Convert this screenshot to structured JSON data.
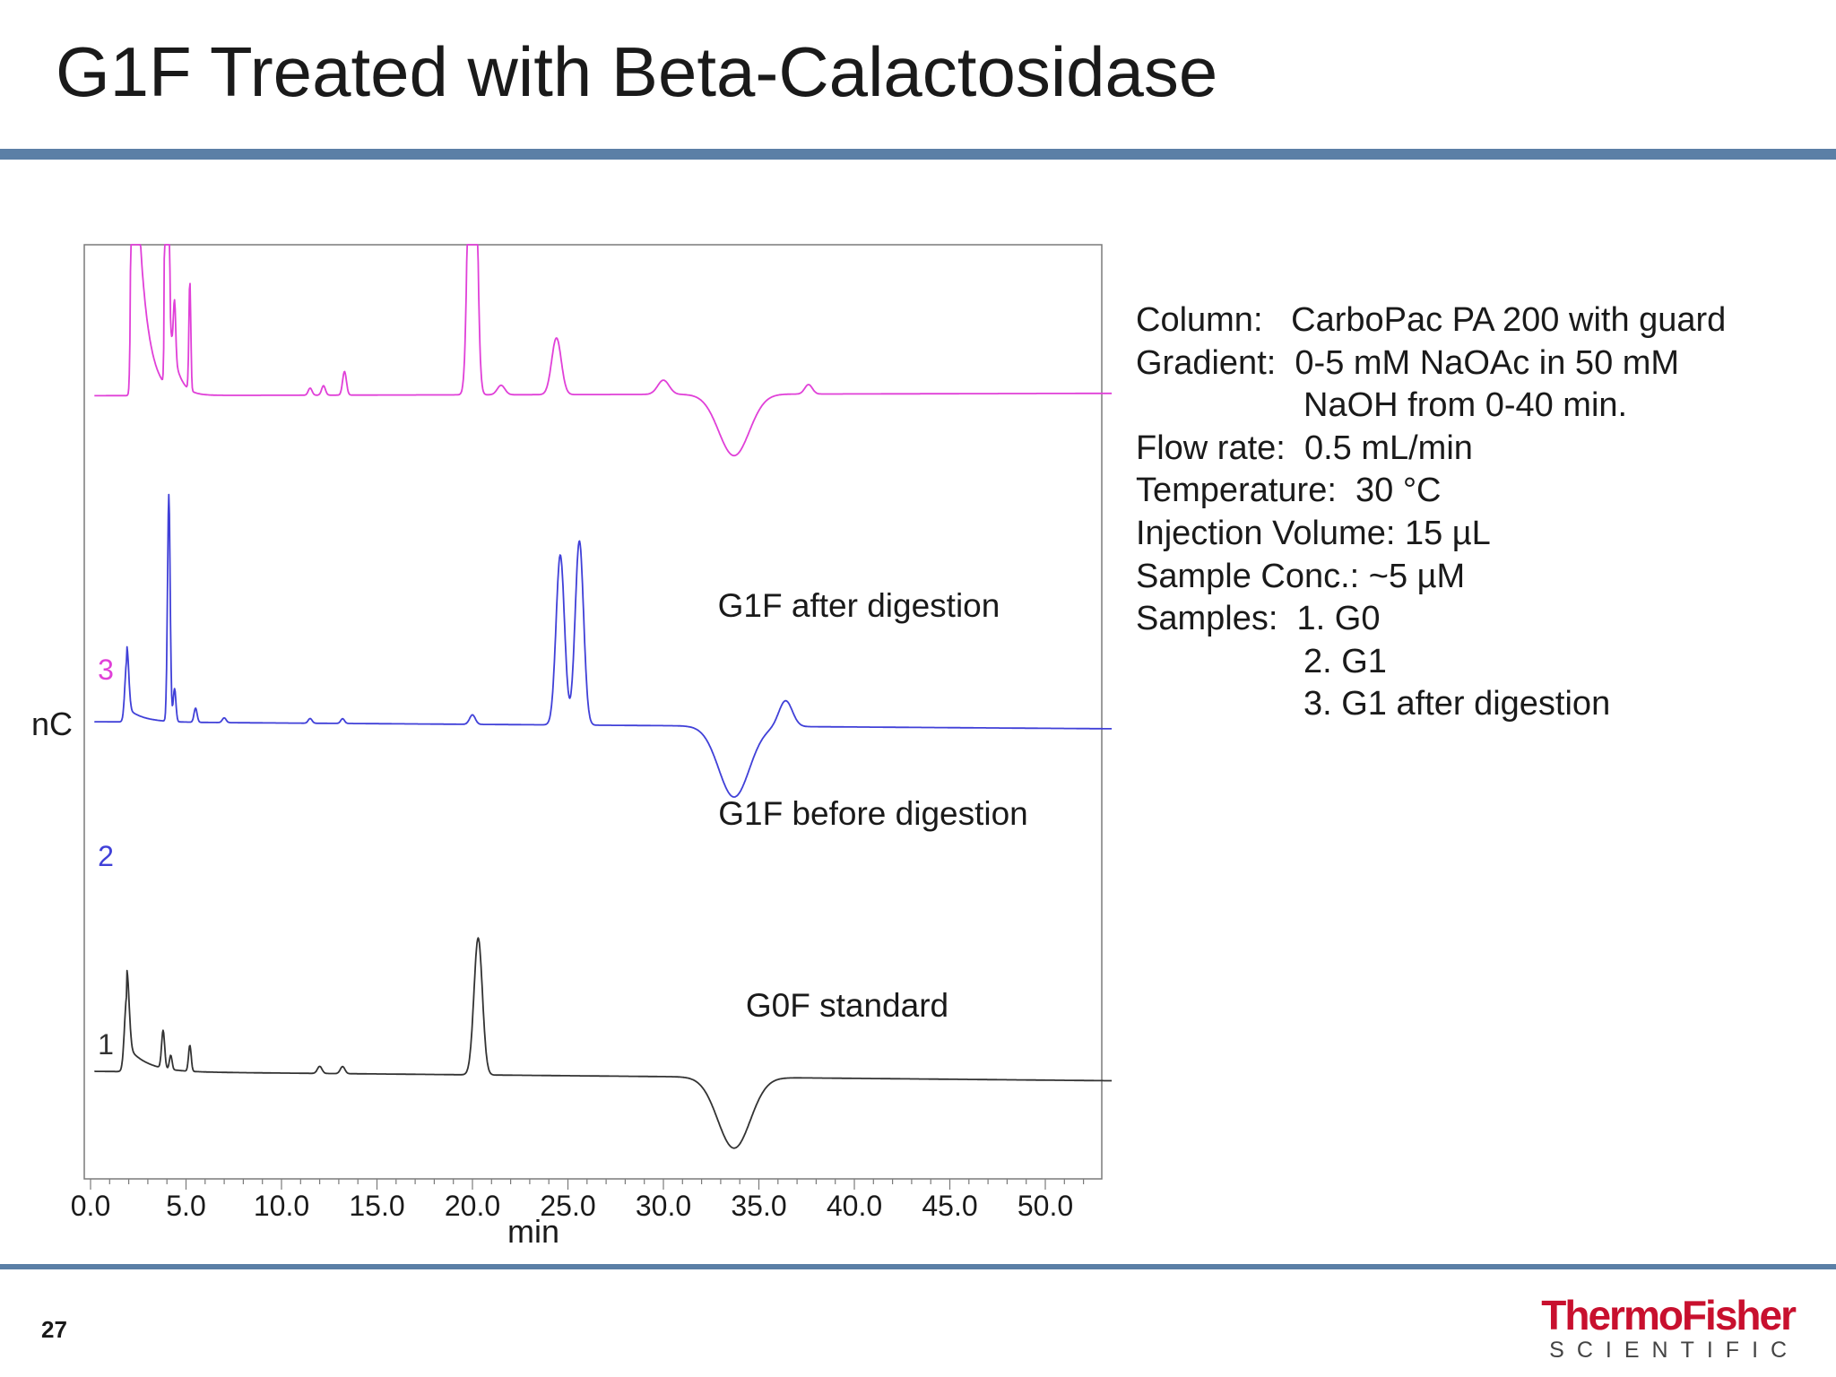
{
  "title": "G1F Treated with Beta-Calactosidase",
  "page_number": "27",
  "brand": {
    "name": "ThermoFisher",
    "sub": "SCIENTIFIC",
    "color": "#c8102e"
  },
  "accent_color": "#5b7fa6",
  "method": {
    "column": "Column:   CarboPac PA 200 with guard",
    "gradient_1": "Gradient:  0-5 mM NaOAc in 50 mM",
    "gradient_2": "NaOH from 0-40 min.",
    "flow_rate": "Flow rate:  0.5 mL/min",
    "temperature": "Temperature:  30 °C",
    "injection_volume": "Injection Volume: 15 µL",
    "sample_conc": "Sample Conc.: ~5 µM",
    "samples_1": "Samples:  1. G0",
    "samples_2": "2. G1",
    "samples_3": "3. G1 after digestion"
  },
  "chart_data": {
    "type": "line",
    "xlabel": "min",
    "ylabel": "nC",
    "xlim": [
      0,
      53.5
    ],
    "x_ticks": [
      "0.0",
      "5.0",
      "10.0",
      "15.0",
      "20.0",
      "25.0",
      "30.0",
      "35.0",
      "40.0",
      "45.0",
      "50.0"
    ],
    "grid": false,
    "series": [
      {
        "name": "1",
        "annotation": "G0F standard",
        "color": "#333333",
        "baseline": 0,
        "drift": -0.2,
        "peaks": [
          [
            1.9,
            1.6,
            0.12
          ],
          [
            3.8,
            0.8,
            0.08
          ],
          [
            4.2,
            0.3,
            0.07
          ],
          [
            5.2,
            0.55,
            0.07
          ],
          [
            12.0,
            0.15,
            0.12
          ],
          [
            13.2,
            0.15,
            0.12
          ],
          [
            20.3,
            2.9,
            0.22
          ],
          [
            33.7,
            -1.5,
            0.85
          ]
        ],
        "tails": [
          [
            1.9,
            0.55,
            1.0
          ]
        ]
      },
      {
        "name": "2",
        "annotation": "G1F before digestion",
        "color": "#4040d8",
        "baseline": 7.4,
        "drift": -0.15,
        "peaks": [
          [
            1.9,
            1.3,
            0.1
          ],
          [
            4.1,
            4.8,
            0.07
          ],
          [
            4.4,
            0.7,
            0.07
          ],
          [
            5.5,
            0.3,
            0.08
          ],
          [
            7.0,
            0.1,
            0.1
          ],
          [
            11.5,
            0.1,
            0.1
          ],
          [
            13.2,
            0.1,
            0.1
          ],
          [
            20.0,
            0.2,
            0.15
          ],
          [
            24.6,
            3.6,
            0.22
          ],
          [
            25.6,
            3.9,
            0.22
          ],
          [
            33.7,
            -1.5,
            0.8
          ],
          [
            36.4,
            0.55,
            0.35
          ]
        ],
        "tails": [
          [
            1.9,
            0.3,
            0.8
          ]
        ]
      },
      {
        "name": "3",
        "annotation": "G1F after digestion",
        "color": "#e040d8",
        "baseline": 14.3,
        "drift": 0.05,
        "peaks": [
          [
            2.3,
            40,
            0.09
          ],
          [
            4.0,
            40,
            0.06
          ],
          [
            4.4,
            1.2,
            0.06
          ],
          [
            5.2,
            2.3,
            0.05
          ],
          [
            11.5,
            0.15,
            0.1
          ],
          [
            12.2,
            0.2,
            0.1
          ],
          [
            13.3,
            0.5,
            0.1
          ],
          [
            20.0,
            11.3,
            0.18
          ],
          [
            21.5,
            0.2,
            0.2
          ],
          [
            24.4,
            1.2,
            0.25
          ],
          [
            30.0,
            0.3,
            0.3
          ],
          [
            33.7,
            -1.3,
            0.8
          ],
          [
            37.6,
            0.2,
            0.2
          ]
        ],
        "tails": [
          [
            2.3,
            6.0,
            0.5
          ],
          [
            4.0,
            2.0,
            0.4
          ]
        ]
      }
    ]
  }
}
